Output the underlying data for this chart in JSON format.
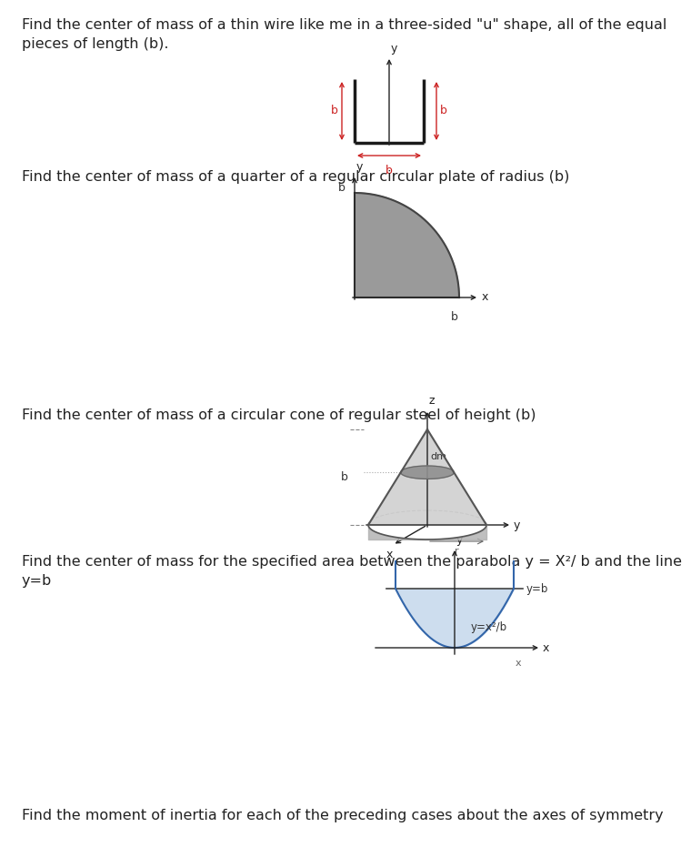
{
  "bg_color": "#ffffff",
  "text_color": "#222222",
  "text1": "Find the center of mass of a thin wire like me in a three-sided \"u\" shape, all of the equal\npieces of length (b).",
  "text2": "Find the center of mass of a quarter of a regular circular plate of radius (b)",
  "text3": "Find the center of mass of a circular cone of regular steel of height (b)",
  "text4": "Find the center of mass for the specified area between the parabola y = X²/ b and the line\ny=b",
  "text5": "Find the moment of inertia for each of the preceding cases about the axes of symmetry",
  "font_size": 11.5,
  "wire_color": "#1a1a1a",
  "arrow_color": "#cc2222",
  "quarter_circle_color": "#888888",
  "cone_color_light": "#d0d0d0",
  "cone_color_mid": "#b0b0b0",
  "cone_color_dark": "#909090",
  "parabola_fill": "#b8cfe8",
  "parabola_line": "#3366aa",
  "axis_color": "#222222",
  "label_color": "#333333"
}
